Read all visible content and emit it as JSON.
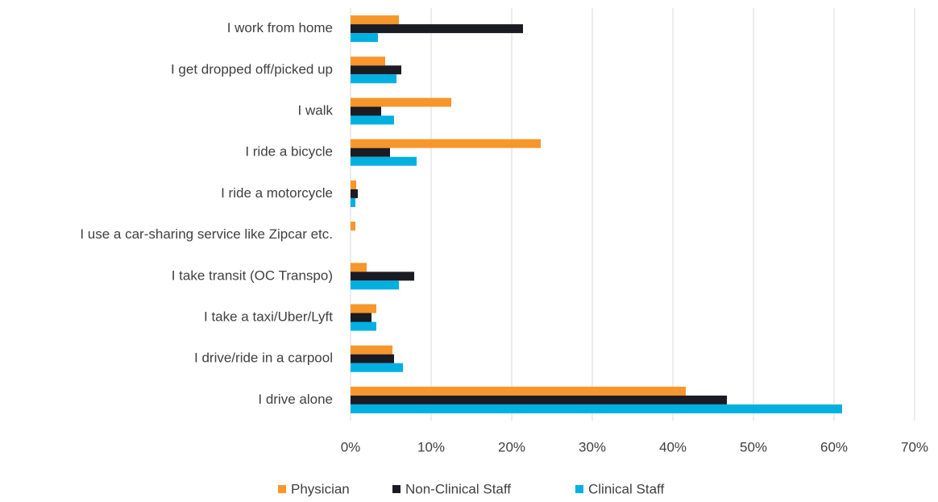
{
  "chart_data": {
    "type": "bar",
    "orientation": "horizontal",
    "categories": [
      "I work from home",
      "I get dropped off/picked up",
      "I walk",
      "I ride a bicycle",
      "I ride a motorcycle",
      "I use a car-sharing service like Zipcar etc.",
      "I take transit (OC Transpo)",
      "I take a taxi/Uber/Lyft",
      "I drive/ride in a carpool",
      "I drive alone"
    ],
    "series": [
      {
        "name": "Physician",
        "color": "#f7962b",
        "values": [
          6.0,
          4.3,
          12.5,
          23.6,
          0.7,
          0.6,
          2.0,
          3.2,
          5.2,
          41.6
        ]
      },
      {
        "name": "Non-Clinical Staff",
        "color": "#1b1b24",
        "values": [
          21.4,
          6.3,
          3.8,
          4.9,
          0.9,
          0,
          7.9,
          2.6,
          5.4,
          46.7
        ]
      },
      {
        "name": "Clinical Staff",
        "color": "#00b0e0",
        "values": [
          3.4,
          5.7,
          5.4,
          8.2,
          0.6,
          0,
          6.0,
          3.2,
          6.5,
          61.0
        ]
      }
    ],
    "xlim": [
      0,
      70
    ],
    "xticks": [
      {
        "value": 0,
        "label": "0%"
      },
      {
        "value": 10,
        "label": "10%"
      },
      {
        "value": 20,
        "label": "20%"
      },
      {
        "value": 30,
        "label": "30%"
      },
      {
        "value": 40,
        "label": "40%"
      },
      {
        "value": 50,
        "label": "50%"
      },
      {
        "value": 60,
        "label": "60%"
      },
      {
        "value": 70,
        "label": "70%"
      }
    ],
    "grid": true,
    "legend": "bottom"
  }
}
